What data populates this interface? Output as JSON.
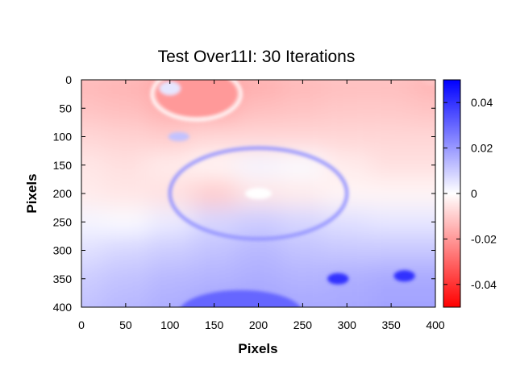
{
  "chart_data": {
    "type": "heatmap",
    "title": "Test Over11I: 30 Iterations",
    "xlabel": "Pixels",
    "ylabel": "Pixels",
    "xlim": [
      0,
      400
    ],
    "ylim": [
      400,
      0
    ],
    "x_ticks": [
      "0",
      "50",
      "100",
      "150",
      "200",
      "250",
      "300",
      "350",
      "400"
    ],
    "y_ticks": [
      "0",
      "50",
      "100",
      "150",
      "200",
      "250",
      "300",
      "350",
      "400"
    ],
    "colorbar": {
      "range": [
        -0.05,
        0.05
      ],
      "ticks": [
        "0.04",
        "0.02",
        "0",
        "-0.02",
        "-0.04"
      ],
      "tick_values": [
        0.04,
        0.02,
        0,
        -0.02,
        -0.04
      ],
      "colors": {
        "low": "#ff0000",
        "mid": "#ffffff",
        "high": "#0000ff"
      }
    },
    "grid_x": [
      0,
      50,
      100,
      150,
      200,
      250,
      300,
      350,
      400
    ],
    "grid_y": [
      0,
      50,
      100,
      150,
      200,
      250,
      300,
      350,
      400
    ],
    "values": [
      [
        -0.014,
        -0.015,
        -0.018,
        -0.02,
        -0.016,
        -0.014,
        -0.013,
        -0.013,
        -0.015
      ],
      [
        -0.012,
        -0.013,
        -0.016,
        -0.017,
        -0.013,
        -0.012,
        -0.011,
        -0.011,
        -0.012
      ],
      [
        -0.008,
        -0.009,
        -0.01,
        -0.008,
        -0.008,
        -0.008,
        -0.008,
        -0.008,
        -0.008
      ],
      [
        -0.005,
        -0.006,
        -0.004,
        -0.002,
        0.002,
        0.001,
        -0.004,
        -0.006,
        -0.006
      ],
      [
        -0.004,
        -0.005,
        -0.006,
        -0.01,
        -0.005,
        -0.004,
        -0.002,
        -0.002,
        -0.002
      ],
      [
        0.002,
        0.001,
        0.004,
        0.008,
        0.01,
        0.008,
        0.006,
        0.005,
        0.005
      ],
      [
        0.006,
        0.008,
        0.01,
        0.012,
        0.014,
        0.012,
        0.011,
        0.011,
        0.011
      ],
      [
        0.01,
        0.012,
        0.014,
        0.015,
        0.016,
        0.015,
        0.016,
        0.017,
        0.017
      ],
      [
        0.012,
        0.014,
        0.016,
        0.018,
        0.018,
        0.017,
        0.017,
        0.018,
        0.018
      ]
    ],
    "features": [
      {
        "shape": "ring",
        "cx": 200,
        "cy": 200,
        "rx": 100,
        "ry": 80,
        "value": 0.022
      },
      {
        "shape": "ellipse",
        "cx": 200,
        "cy": 200,
        "rx": 15,
        "ry": 10,
        "value": 0.0
      },
      {
        "shape": "ring",
        "cx": 130,
        "cy": 25,
        "rx": 50,
        "ry": 45,
        "value": 0.0
      },
      {
        "shape": "ellipse",
        "cx": 130,
        "cy": 25,
        "rx": 45,
        "ry": 40,
        "value": -0.02
      },
      {
        "shape": "ellipse",
        "cx": 100,
        "cy": 15,
        "rx": 12,
        "ry": 12,
        "value": 0.005
      },
      {
        "shape": "ellipse",
        "cx": 110,
        "cy": 100,
        "rx": 12,
        "ry": 8,
        "value": 0.012
      },
      {
        "shape": "ellipse",
        "cx": 290,
        "cy": 350,
        "rx": 12,
        "ry": 10,
        "value": 0.04
      },
      {
        "shape": "ellipse",
        "cx": 365,
        "cy": 345,
        "rx": 12,
        "ry": 10,
        "value": 0.04
      },
      {
        "shape": "ellipse",
        "cx": 180,
        "cy": 410,
        "rx": 70,
        "ry": 40,
        "value": 0.03
      },
      {
        "shape": "ellipse",
        "cx": 400,
        "cy": 0,
        "rx": 15,
        "ry": 10,
        "value": -0.012
      }
    ]
  }
}
